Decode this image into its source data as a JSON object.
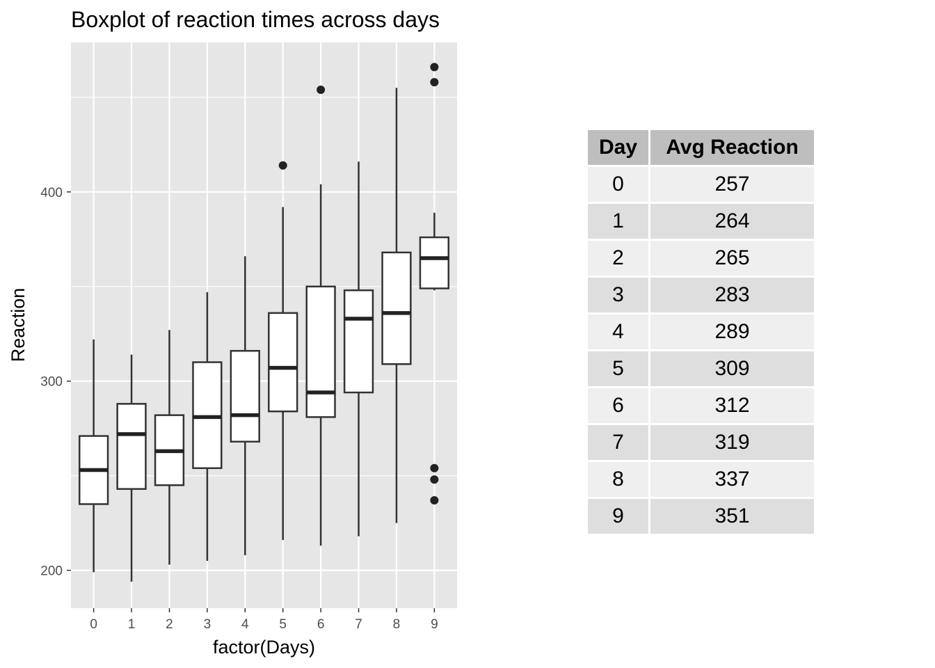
{
  "chart_data": {
    "type": "boxplot",
    "title": "Boxplot of reaction times across days",
    "xlabel": "factor(Days)",
    "ylabel": "Reaction",
    "ylim": [
      180,
      479
    ],
    "y_major_ticks": [
      200,
      300,
      400
    ],
    "y_minor_ticks": [
      250,
      350,
      450
    ],
    "grid": true,
    "legend": "none",
    "categories": [
      "0",
      "1",
      "2",
      "3",
      "4",
      "5",
      "6",
      "7",
      "8",
      "9"
    ],
    "boxes": [
      {
        "day": "0",
        "lower_whisker": 199,
        "q1": 235,
        "median": 253,
        "q3": 271,
        "upper_whisker": 322,
        "outliers": []
      },
      {
        "day": "1",
        "lower_whisker": 194,
        "q1": 243,
        "median": 272,
        "q3": 288,
        "upper_whisker": 314,
        "outliers": []
      },
      {
        "day": "2",
        "lower_whisker": 203,
        "q1": 245,
        "median": 263,
        "q3": 282,
        "upper_whisker": 327,
        "outliers": []
      },
      {
        "day": "3",
        "lower_whisker": 205,
        "q1": 254,
        "median": 281,
        "q3": 310,
        "upper_whisker": 347,
        "outliers": []
      },
      {
        "day": "4",
        "lower_whisker": 208,
        "q1": 268,
        "median": 282,
        "q3": 316,
        "upper_whisker": 366,
        "outliers": []
      },
      {
        "day": "5",
        "lower_whisker": 216,
        "q1": 284,
        "median": 307,
        "q3": 336,
        "upper_whisker": 392,
        "outliers": [
          414
        ]
      },
      {
        "day": "6",
        "lower_whisker": 213,
        "q1": 281,
        "median": 294,
        "q3": 350,
        "upper_whisker": 404,
        "outliers": [
          454
        ]
      },
      {
        "day": "7",
        "lower_whisker": 218,
        "q1": 294,
        "median": 333,
        "q3": 348,
        "upper_whisker": 416,
        "outliers": []
      },
      {
        "day": "8",
        "lower_whisker": 225,
        "q1": 309,
        "median": 336,
        "q3": 368,
        "upper_whisker": 455,
        "outliers": []
      },
      {
        "day": "9",
        "lower_whisker": 348,
        "q1": 349,
        "median": 365,
        "q3": 376,
        "upper_whisker": 389,
        "outliers": [
          466,
          458,
          254,
          248,
          237
        ]
      }
    ],
    "table": {
      "headers": [
        "Day",
        "Avg Reaction"
      ],
      "rows": [
        [
          "0",
          "257"
        ],
        [
          "1",
          "264"
        ],
        [
          "2",
          "265"
        ],
        [
          "3",
          "283"
        ],
        [
          "4",
          "289"
        ],
        [
          "5",
          "309"
        ],
        [
          "6",
          "312"
        ],
        [
          "7",
          "319"
        ],
        [
          "8",
          "337"
        ],
        [
          "9",
          "351"
        ]
      ]
    }
  },
  "colors": {
    "panel_background": "#e6e6e6",
    "grid": "#ffffff",
    "box_fill": "#ffffff",
    "box_line": "#333333",
    "point": "#222222",
    "table_header": "#bebebe",
    "table_row_light": "#efefef",
    "table_row_dark": "#dedede"
  }
}
